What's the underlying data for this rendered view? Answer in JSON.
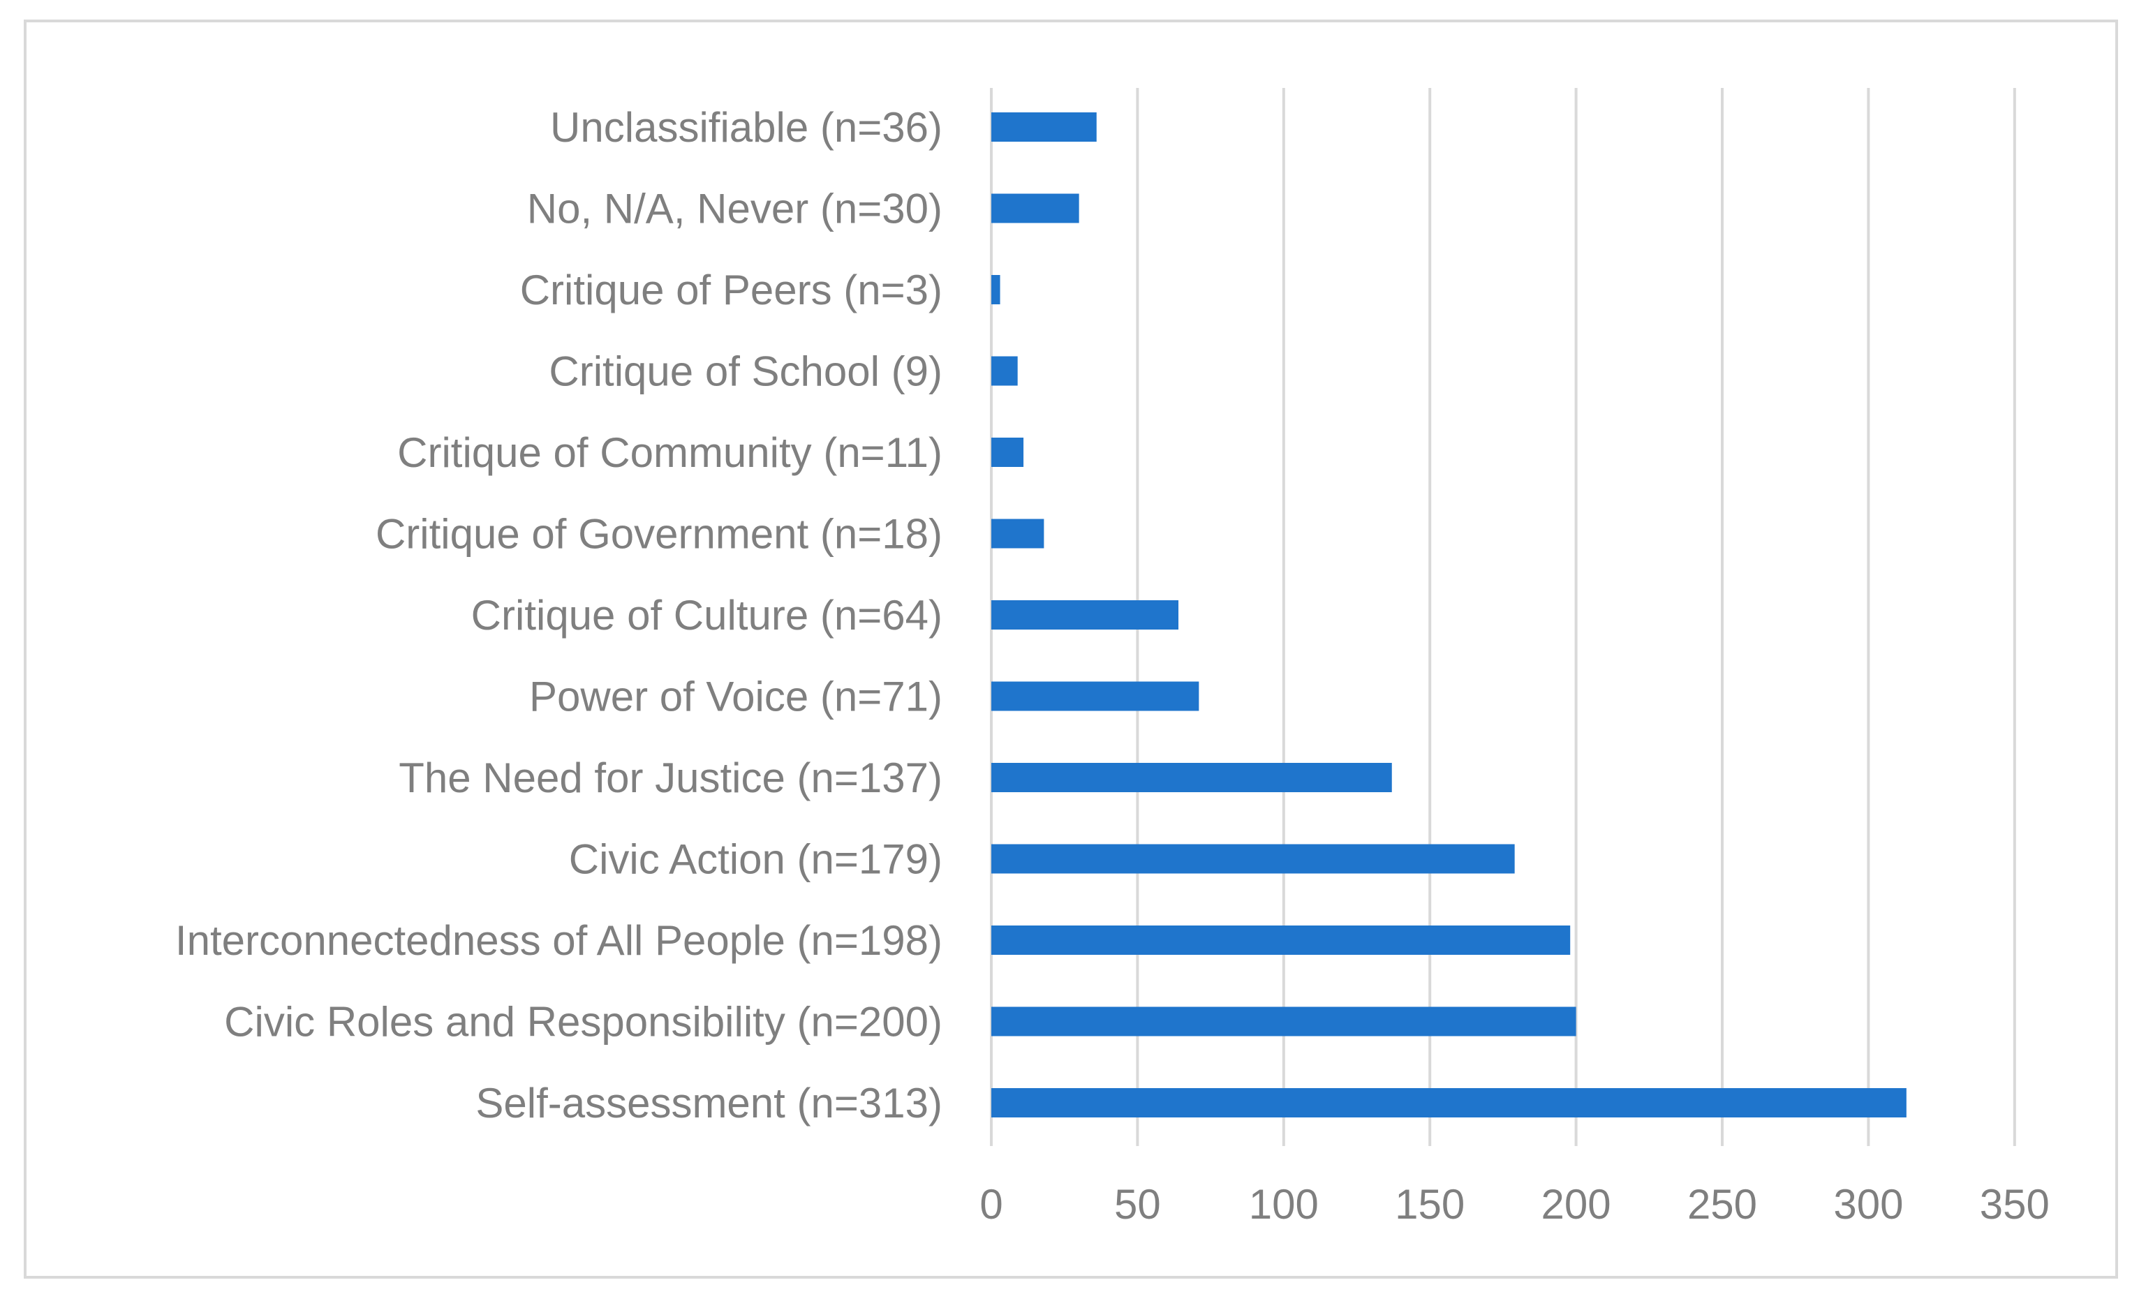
{
  "chart_data": {
    "type": "bar",
    "orientation": "horizontal",
    "title": "",
    "xlabel": "",
    "ylabel": "",
    "categories": [
      "Self-assessment (n=313)",
      "Civic Roles and Responsibility (n=200)",
      "Interconnectedness of All People (n=198)",
      "Civic Action (n=179)",
      "The Need for Justice (n=137)",
      "Power of Voice (n=71)",
      "Critique of Culture (n=64)",
      "Critique of Government (n=18)",
      "Critique of Community (n=11)",
      "Critique of School (9)",
      "Critique of Peers (n=3)",
      "No, N/A, Never (n=30)",
      "Unclassifiable (n=36)"
    ],
    "values": [
      313,
      200,
      198,
      179,
      137,
      71,
      64,
      18,
      11,
      9,
      3,
      30,
      36
    ],
    "xlim": [
      0,
      350
    ],
    "xticks": [
      0,
      50,
      100,
      150,
      200,
      250,
      300,
      350
    ],
    "grid": "vertical",
    "legend": "none",
    "bar_color": "#1f75cc",
    "gridline_color": "#d9d9d9",
    "label_color": "#7f7f7f"
  }
}
